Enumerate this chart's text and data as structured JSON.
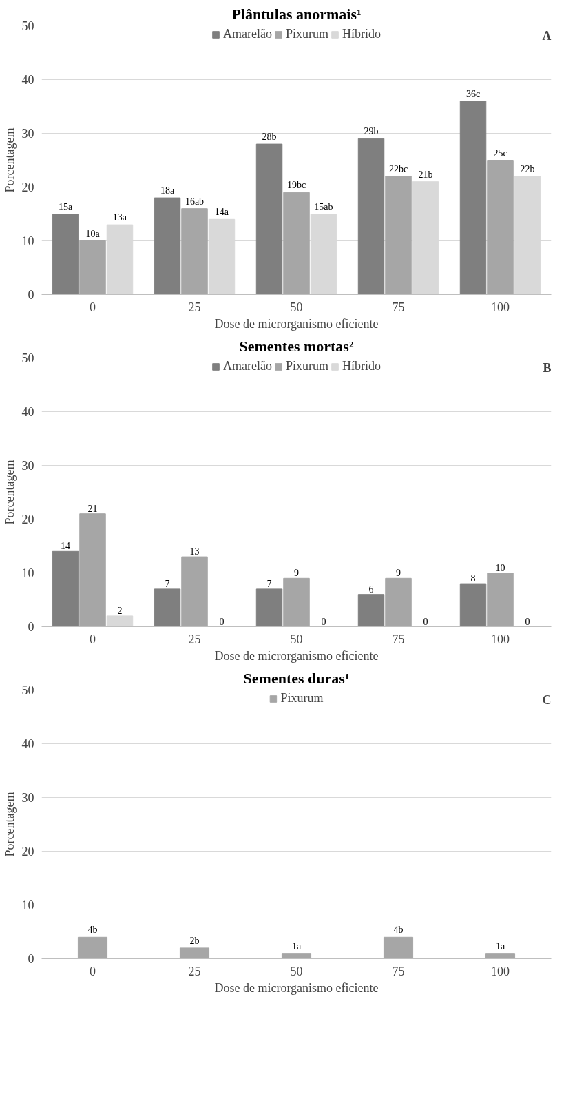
{
  "chart_data": [
    {
      "type": "bar",
      "title": "Plântulas anormais¹",
      "xlabel": "Dose de microrganismo eficiente",
      "ylabel": "Porcentagem",
      "annotations": [
        "A"
      ],
      "categories": [
        "0",
        "25",
        "50",
        "75",
        "100"
      ],
      "ylim": [
        0,
        50
      ],
      "yticks": [
        0,
        10,
        20,
        30,
        40,
        50
      ],
      "grid": "y",
      "legend": "top",
      "series": [
        {
          "name": "Amarelão",
          "color": "#7f7f7f",
          "values": [
            15,
            18,
            28,
            29,
            36
          ],
          "value_labels": [
            "15a",
            "18a",
            "28b",
            "29b",
            "36c"
          ]
        },
        {
          "name": "Pixurum",
          "color": "#a6a6a6",
          "values": [
            10,
            16,
            19,
            22,
            25
          ],
          "value_labels": [
            "10a",
            "16ab",
            "19bc",
            "22bc",
            "25c"
          ]
        },
        {
          "name": "Híbrido",
          "color": "#d9d9d9",
          "values": [
            13,
            14,
            15,
            21,
            22
          ],
          "value_labels": [
            "13a",
            "14a",
            "15ab",
            "21b",
            "22b"
          ]
        }
      ]
    },
    {
      "type": "bar",
      "title": "Sementes mortas²",
      "xlabel": "Dose de microrganismo eficiente",
      "ylabel": "Porcentagem",
      "annotations": [
        "B"
      ],
      "categories": [
        "0",
        "25",
        "50",
        "75",
        "100"
      ],
      "ylim": [
        0,
        50
      ],
      "yticks": [
        0,
        10,
        20,
        30,
        40,
        50
      ],
      "grid": "y",
      "legend": "top",
      "data_labels": true,
      "series": [
        {
          "name": "Amarelão",
          "color": "#7f7f7f",
          "values": [
            14,
            7,
            7,
            6,
            8
          ]
        },
        {
          "name": "Pixurum",
          "color": "#a6a6a6",
          "values": [
            21,
            13,
            9,
            9,
            10
          ]
        },
        {
          "name": "Híbrido",
          "color": "#d9d9d9",
          "values": [
            2,
            0,
            0,
            0,
            0
          ]
        }
      ]
    },
    {
      "type": "bar",
      "title": "Sementes duras¹",
      "xlabel": "Dose de microrganismo eficiente",
      "ylabel": "Porcentagem",
      "annotations": [
        "C"
      ],
      "categories": [
        "0",
        "25",
        "50",
        "75",
        "100"
      ],
      "ylim": [
        0,
        50
      ],
      "yticks": [
        0,
        10,
        20,
        30,
        40,
        50
      ],
      "grid": "y",
      "legend": "top",
      "series": [
        {
          "name": "Pixurum",
          "color": "#a6a6a6",
          "values": [
            4,
            2,
            1,
            4,
            1
          ],
          "value_labels": [
            "4b",
            "2b",
            "1a",
            "4b",
            "1a"
          ]
        }
      ]
    }
  ]
}
